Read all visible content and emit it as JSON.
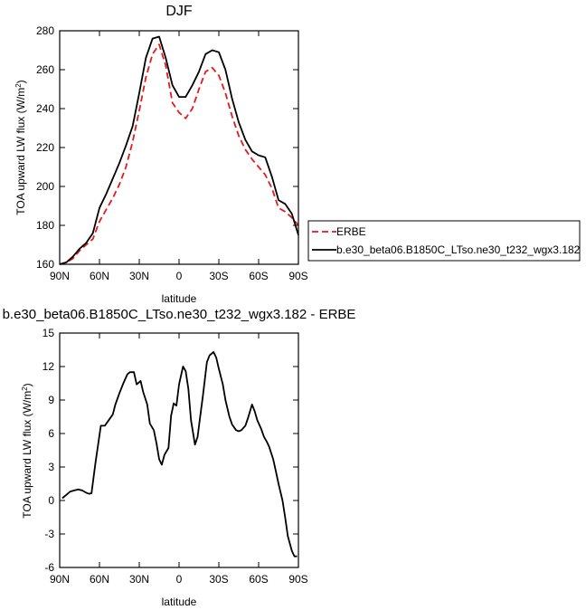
{
  "chart_data": [
    {
      "type": "line",
      "title": "DJF",
      "xlabel": "latitude",
      "ylabel": "TOA upward LW flux (W/m",
      "ylabel_sup": "2",
      "ylabel_close": ")",
      "xlim": [
        90,
        -90
      ],
      "ylim": [
        160,
        280
      ],
      "xticks": [
        90,
        60,
        30,
        0,
        -30,
        -60,
        -90
      ],
      "xtick_labels": [
        "90N",
        "60N",
        "30N",
        "0",
        "30S",
        "60S",
        "90S"
      ],
      "yticks": [
        160,
        180,
        200,
        220,
        240,
        260,
        280
      ],
      "ytick_labels": [
        "160",
        "180",
        "200",
        "220",
        "240",
        "260",
        "280"
      ],
      "legend_position": "right",
      "series": [
        {
          "name": "ERBE",
          "color": "#e41a1c",
          "dash": true,
          "x": [
            90,
            85,
            80,
            75,
            70,
            65,
            60,
            55,
            50,
            45,
            40,
            35,
            30,
            25,
            20,
            15,
            10,
            5,
            0,
            -5,
            -10,
            -15,
            -20,
            -25,
            -30,
            -35,
            -40,
            -45,
            -50,
            -55,
            -60,
            -65,
            -70,
            -75,
            -80,
            -85,
            -90
          ],
          "values": [
            160,
            161,
            163,
            167,
            170,
            173,
            182,
            188,
            194,
            201,
            210,
            223,
            239,
            256,
            268,
            273,
            262,
            243,
            238,
            235,
            240,
            250,
            259,
            261,
            257,
            248,
            236,
            226,
            219,
            214,
            210,
            206,
            199,
            189,
            187,
            184,
            180
          ]
        },
        {
          "name": "b.e30_beta06.B1850C_LTso.ne30_t232_wgx3.182",
          "color": "#000000",
          "dash": false,
          "x": [
            90,
            85,
            80,
            75,
            70,
            65,
            60,
            55,
            50,
            45,
            40,
            35,
            30,
            25,
            20,
            15,
            10,
            5,
            0,
            -5,
            -10,
            -15,
            -20,
            -25,
            -30,
            -35,
            -40,
            -45,
            -50,
            -55,
            -60,
            -65,
            -70,
            -75,
            -80,
            -85,
            -90
          ],
          "values": [
            160,
            161,
            164,
            168,
            171,
            176,
            189,
            196,
            204,
            212,
            221,
            231,
            248,
            266,
            276,
            277,
            266,
            252,
            246,
            246,
            252,
            259,
            268,
            270,
            269,
            260,
            245,
            233,
            224,
            218,
            216,
            215,
            205,
            193,
            191,
            186,
            175
          ]
        }
      ]
    },
    {
      "type": "line",
      "title": "b.e30_beta06.B1850C_LTso.ne30_t232_wgx3.182 - ERBE",
      "xlabel": "latitude",
      "ylabel": "TOA upward LW flux (W/m",
      "ylabel_sup": "2",
      "ylabel_close": ")",
      "xlim": [
        90,
        -90
      ],
      "ylim": [
        -6,
        15
      ],
      "xticks": [
        90,
        60,
        30,
        0,
        -30,
        -60,
        -90
      ],
      "xtick_labels": [
        "90N",
        "60N",
        "30N",
        "0",
        "30S",
        "60S",
        "90S"
      ],
      "yticks": [
        -6,
        -3,
        0,
        3,
        6,
        9,
        12,
        15
      ],
      "ytick_labels": [
        "-6",
        "-3",
        "0",
        "3",
        "6",
        "9",
        "12",
        "15"
      ],
      "series": [
        {
          "color": "#000000",
          "dash": false,
          "x": [
            88,
            85,
            82,
            79,
            76,
            73,
            70,
            68,
            66,
            63,
            61,
            59,
            56,
            53,
            50,
            48,
            45,
            42,
            39,
            37,
            34,
            32,
            29,
            27,
            24,
            22,
            19,
            17,
            15,
            13,
            11,
            8,
            6,
            4,
            2,
            0,
            -3,
            -5,
            -7,
            -9,
            -12,
            -14,
            -16,
            -18,
            -21,
            -23,
            -26,
            -28,
            -30,
            -33,
            -35,
            -38,
            -40,
            -43,
            -45,
            -47,
            -50,
            -52,
            -55,
            -57,
            -59,
            -62,
            -64,
            -66,
            -68,
            -71,
            -73,
            -75,
            -78,
            -80,
            -82,
            -85,
            -87,
            -89
          ],
          "values": [
            0.2,
            0.5,
            0.8,
            0.9,
            1.0,
            0.9,
            0.7,
            0.6,
            0.65,
            3.4,
            5.0,
            6.7,
            6.7,
            7.2,
            7.7,
            8.6,
            9.6,
            10.5,
            11.3,
            11.5,
            11.5,
            10.4,
            10.7,
            9.7,
            8.6,
            6.9,
            6.3,
            5.1,
            3.7,
            3.2,
            4.1,
            4.7,
            7.6,
            8.7,
            8.5,
            10.4,
            12.0,
            11.6,
            10.0,
            7.2,
            5.0,
            5.7,
            7.6,
            9.4,
            12.4,
            13.0,
            13.3,
            12.8,
            11.8,
            10.4,
            9.0,
            7.5,
            6.8,
            6.3,
            6.2,
            6.3,
            6.7,
            7.4,
            8.6,
            8.0,
            7.2,
            6.4,
            5.7,
            5.3,
            4.8,
            3.7,
            2.6,
            1.5,
            0.0,
            -1.5,
            -3.2,
            -4.5,
            -5.0,
            -5.0
          ]
        }
      ]
    }
  ]
}
